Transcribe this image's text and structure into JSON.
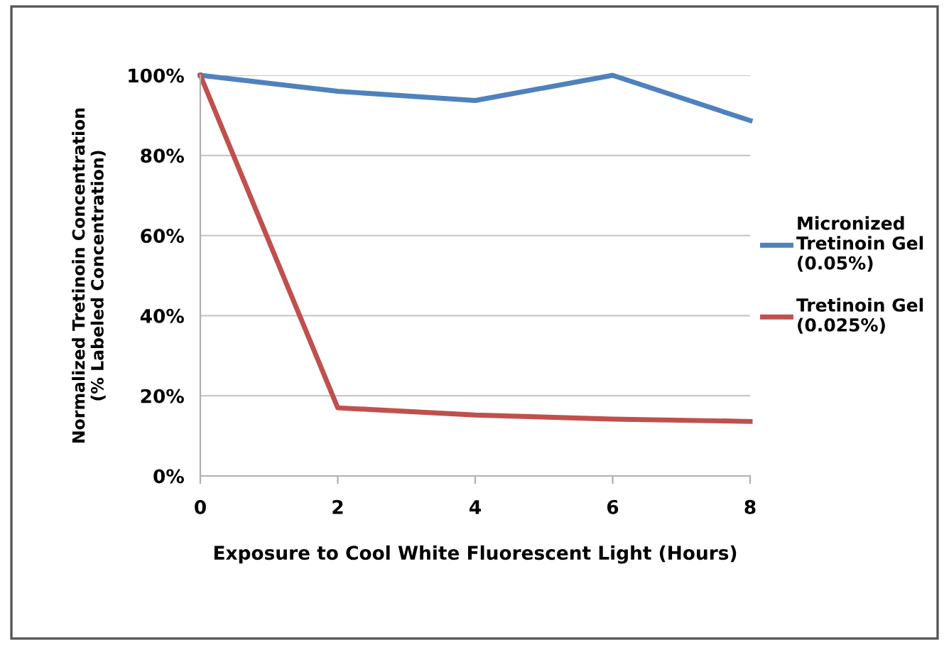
{
  "chart_data": {
    "type": "line",
    "xlabel": "Exposure to Cool White Fluorescent Light (Hours)",
    "ylabel": "Normalized Tretinoin Concentration\n(% Labeled Concentration)",
    "x": [
      0,
      2,
      4,
      6,
      8
    ],
    "series": [
      {
        "name": "Micronized\nTretinoin Gel\n(0.05%)",
        "color": "#4f81bd",
        "values": [
          100,
          96,
          93.7,
          100,
          88.7
        ]
      },
      {
        "name": "Tretinoin Gel\n(0.025%)",
        "color": "#c0504d",
        "values": [
          100,
          17,
          15.2,
          14.2,
          13.6
        ]
      }
    ],
    "xlim": [
      0,
      8
    ],
    "xticks": [
      0,
      2,
      4,
      6,
      8
    ],
    "ylim": [
      0,
      100
    ],
    "yticks": [
      {
        "value": 0,
        "label": "0%"
      },
      {
        "value": 20,
        "label": "20%"
      },
      {
        "value": 40,
        "label": "40%"
      },
      {
        "value": 60,
        "label": "60%"
      },
      {
        "value": 80,
        "label": "80%"
      },
      {
        "value": 100,
        "label": "100%"
      }
    ],
    "grid": "y",
    "legend": "right",
    "marker": "none",
    "line_style": "solid"
  }
}
